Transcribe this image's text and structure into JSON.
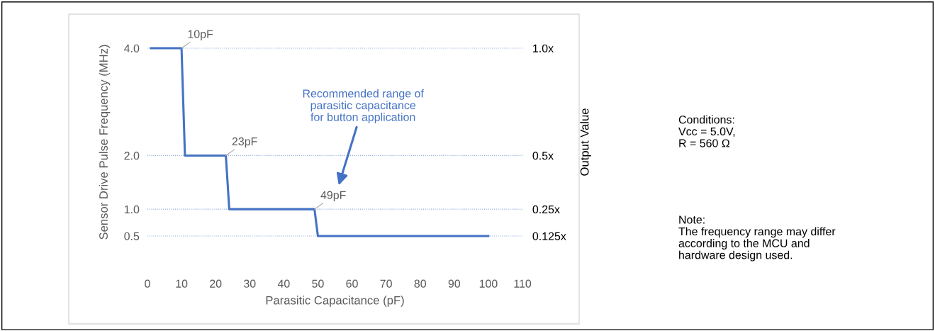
{
  "chart_data": {
    "type": "line",
    "xlabel": "Parasitic Capacitance (pF)",
    "ylabel": "Sensor Drive Pulse Frequency (MHz)",
    "y2label": "Output Value",
    "x": [
      1,
      10,
      11,
      23,
      24,
      49,
      50,
      100
    ],
    "series": [
      {
        "color": "#4472c4",
        "values": [
          4.0,
          4.0,
          2.0,
          2.0,
          1.0,
          1.0,
          0.5,
          0.5
        ]
      }
    ],
    "xlim": [
      0,
      110
    ],
    "xticks": [
      0,
      10,
      20,
      30,
      40,
      50,
      60,
      70,
      80,
      90,
      100,
      110
    ],
    "ylim": [
      0.5,
      4.0
    ],
    "yticks": [
      {
        "value": 0.5,
        "label": "0.5"
      },
      {
        "value": 1.0,
        "label": "1.0"
      },
      {
        "value": 2.0,
        "label": "2.0"
      },
      {
        "value": 4.0,
        "label": "4.0"
      }
    ],
    "y2lim": [
      0.125,
      1.0
    ],
    "y2ticks": [
      {
        "value": 0.125,
        "label": "0.125x"
      },
      {
        "value": 0.25,
        "label": "0.25x"
      },
      {
        "value": 0.5,
        "label": "0.5x"
      },
      {
        "value": 1.0,
        "label": "1.0x"
      }
    ],
    "grid": "y",
    "marker": "none",
    "line_style": "solid",
    "annotations": [
      {
        "text": "10pF",
        "x": 10,
        "y": 4.0
      },
      {
        "text": "23pF",
        "x": 23,
        "y": 2.0
      },
      {
        "text": "49pF",
        "x": 49,
        "y": 1.0
      },
      "Recommended range of\nparasitic capacitance\nfor button application",
      "Conditions:\nVcc = 5.0V,\nR = 560 Ω",
      "Note:\nThe frequency range may differ\naccording to the MCU and\nhardware design used."
    ]
  }
}
